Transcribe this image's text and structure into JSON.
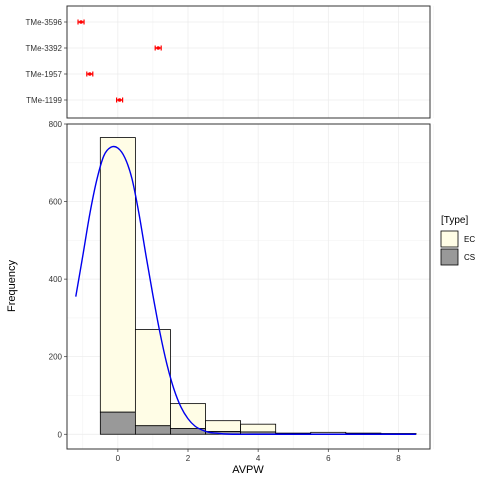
{
  "chart_data": [
    {
      "type": "scatter",
      "panel": "top",
      "categories": [
        "TMe-3596",
        "TMe-3392",
        "TMe-1957",
        "TMe-1199"
      ],
      "points": [
        {
          "label": "TMe-3596",
          "x": -1.05
        },
        {
          "label": "TMe-3392",
          "x": 1.15
        },
        {
          "label": "TMe-1957",
          "x": -0.8
        },
        {
          "label": "TMe-1199",
          "x": 0.05
        }
      ],
      "marker_color": "#ff0000",
      "grid": true
    },
    {
      "type": "bar",
      "panel": "bottom",
      "subtype": "stacked histogram with density curve",
      "bin_edges": [
        -0.5,
        0.5,
        1.5,
        2.5,
        3.5,
        4.5,
        5.5,
        6.5,
        7.5,
        8.5
      ],
      "series": [
        {
          "name": "CS",
          "values": [
            57,
            22,
            15,
            7,
            6,
            1,
            1,
            1,
            1
          ],
          "color": "#999999"
        },
        {
          "name": "EC",
          "values": [
            708,
            248,
            64,
            28,
            20,
            2,
            4,
            2,
            1
          ],
          "color": "#fffde6"
        }
      ],
      "curve": {
        "color": "#0000ee",
        "x": [
          -1.2,
          -1.0,
          -0.8,
          -0.6,
          -0.4,
          -0.2,
          0.0,
          0.2,
          0.4,
          0.6,
          0.8,
          1.0,
          1.2,
          1.4,
          1.6,
          1.8,
          2.0,
          2.2,
          2.4,
          2.6,
          2.8,
          3.0,
          3.4,
          3.8,
          4.5,
          5.5,
          6.5,
          7.5,
          8.5
        ],
        "y": [
          355,
          460,
          568,
          656,
          718,
          740,
          738,
          713,
          660,
          570,
          462,
          358,
          262,
          180,
          116,
          70,
          40,
          21,
          11,
          5,
          3,
          1,
          0,
          0,
          0,
          0,
          0,
          0,
          0
        ]
      },
      "xlabel": "AVPW",
      "ylabel": "Frequency",
      "xlim": [
        -1.45,
        8.9
      ],
      "ylim": [
        -38,
        800
      ],
      "x_ticks": [
        0,
        2,
        4,
        6,
        8
      ],
      "y_ticks": [
        0,
        200,
        400,
        600,
        800
      ],
      "legend": {
        "title": "[Type]",
        "position": "right",
        "items": [
          "EC",
          "CS"
        ]
      },
      "grid": true
    }
  ]
}
